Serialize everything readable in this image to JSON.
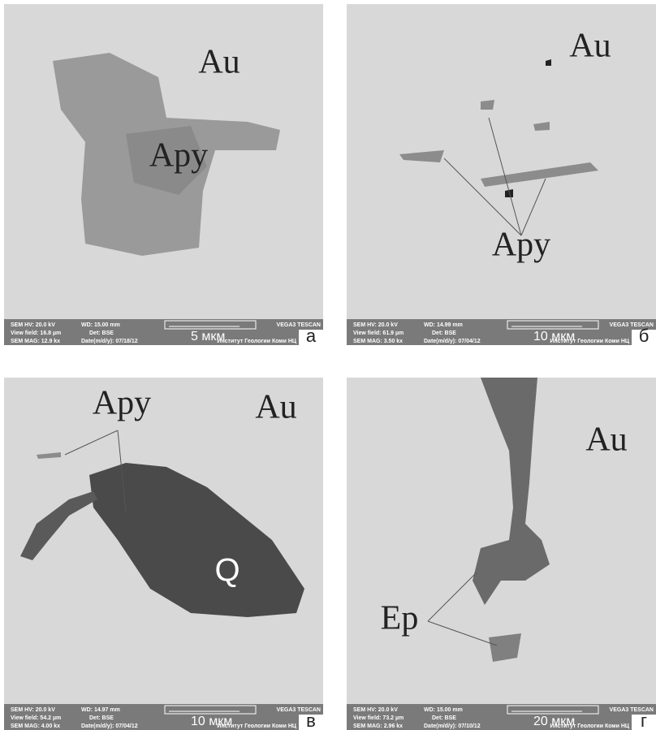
{
  "panels": [
    {
      "letter": "а",
      "labels": [
        "Au",
        "Apy"
      ],
      "info": {
        "hv": "SEM HV: 20.0 kV",
        "wd": "WD: 15.00 mm",
        "view_field": "View field: 16.8 µm",
        "det": "Det: BSE",
        "mag": "SEM MAG: 12.9 kx",
        "date": "Date(m/d/y): 07/18/12",
        "microscope": "VEGA3 TESCAN",
        "scale": "5 мкм",
        "institute": "Институт Геологии Коми НЦ"
      }
    },
    {
      "letter": "б",
      "labels": [
        "Au",
        "Apy"
      ],
      "info": {
        "hv": "SEM HV: 20.0 kV",
        "wd": "WD: 14.99 mm",
        "view_field": "View field: 61.9 µm",
        "det": "Det: BSE",
        "mag": "SEM MAG: 3.50 kx",
        "date": "Date(m/d/y): 07/04/12",
        "microscope": "VEGA3 TESCAN",
        "scale": "10 мкм",
        "institute": "Институт Геологии Коми НЦ"
      }
    },
    {
      "letter": "в",
      "labels": [
        "Apy",
        "Au",
        "Q"
      ],
      "info": {
        "hv": "SEM HV: 20.0 kV",
        "wd": "WD: 14.97 mm",
        "view_field": "View field: 54.2 µm",
        "det": "Det: BSE",
        "mag": "SEM MAG: 4.00 kx",
        "date": "Date(m/d/y): 07/04/12",
        "microscope": "VEGA3 TESCAN",
        "scale": "10 мкм",
        "institute": "Институт Геологии Коми НЦ"
      }
    },
    {
      "letter": "г",
      "labels": [
        "Au",
        "Ep"
      ],
      "info": {
        "hv": "SEM HV: 20.0 kV",
        "wd": "WD: 15.00 mm",
        "view_field": "View field: 73.2 µm",
        "det": "Det: BSE",
        "mag": "SEM MAG: 2.96 kx",
        "date": "Date(m/d/y): 07/10/12",
        "microscope": "VEGA3 TESCAN",
        "scale": "20 мкм",
        "institute": "Институт Геологии Коми НЦ"
      }
    }
  ]
}
